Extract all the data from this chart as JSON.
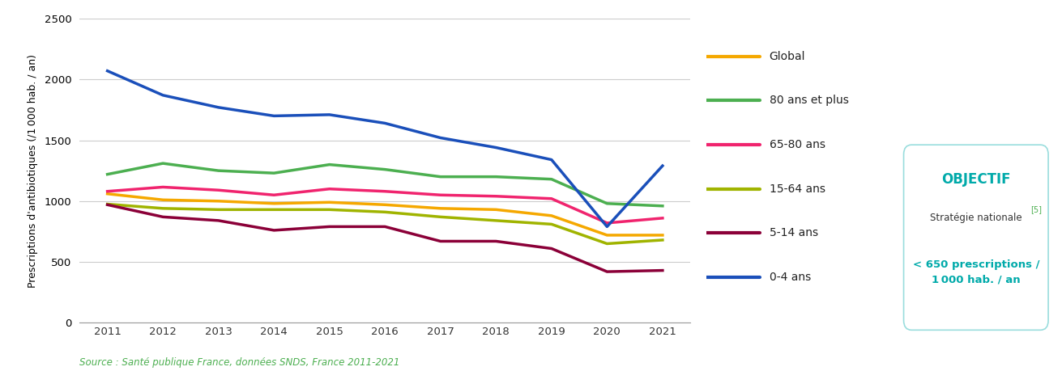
{
  "years": [
    2011,
    2012,
    2013,
    2014,
    2015,
    2016,
    2017,
    2018,
    2019,
    2020,
    2021
  ],
  "series": {
    "Global": {
      "color": "#F5A800",
      "values": [
        1060,
        1010,
        1000,
        980,
        990,
        970,
        940,
        930,
        880,
        720,
        720
      ]
    },
    "80 ans et plus": {
      "color": "#4CAF50",
      "values": [
        1220,
        1310,
        1250,
        1230,
        1300,
        1260,
        1200,
        1200,
        1180,
        980,
        960
      ]
    },
    "65-80 ans": {
      "color": "#F0246E",
      "values": [
        1080,
        1115,
        1090,
        1050,
        1100,
        1080,
        1050,
        1040,
        1020,
        820,
        860
      ]
    },
    "15-64 ans": {
      "color": "#A0B400",
      "values": [
        975,
        940,
        930,
        930,
        930,
        910,
        870,
        840,
        810,
        650,
        680
      ]
    },
    "5-14 ans": {
      "color": "#8B0038",
      "values": [
        970,
        870,
        840,
        760,
        790,
        790,
        670,
        670,
        610,
        420,
        430
      ]
    },
    "0-4 ans": {
      "color": "#1A4FBA",
      "values": [
        2070,
        1870,
        1770,
        1700,
        1710,
        1640,
        1520,
        1440,
        1340,
        790,
        1290
      ]
    }
  },
  "series_order": [
    "Global",
    "80 ans et plus",
    "65-80 ans",
    "15-64 ans",
    "5-14 ans",
    "0-4 ans"
  ],
  "ylabel": "Prescriptions d'antibiotiques (/1 000 hab. / an)",
  "ylim": [
    0,
    2500
  ],
  "yticks": [
    0,
    500,
    1000,
    1500,
    2000,
    2500
  ],
  "source_text": "Source : Santé publique France, données SNDS, France 2011-2021",
  "source_color": "#4CAF50",
  "objectif_color": "#00AAAA",
  "objectif_green": "#4CAF50",
  "background_color": "#FFFFFF",
  "linewidth": 2.5
}
